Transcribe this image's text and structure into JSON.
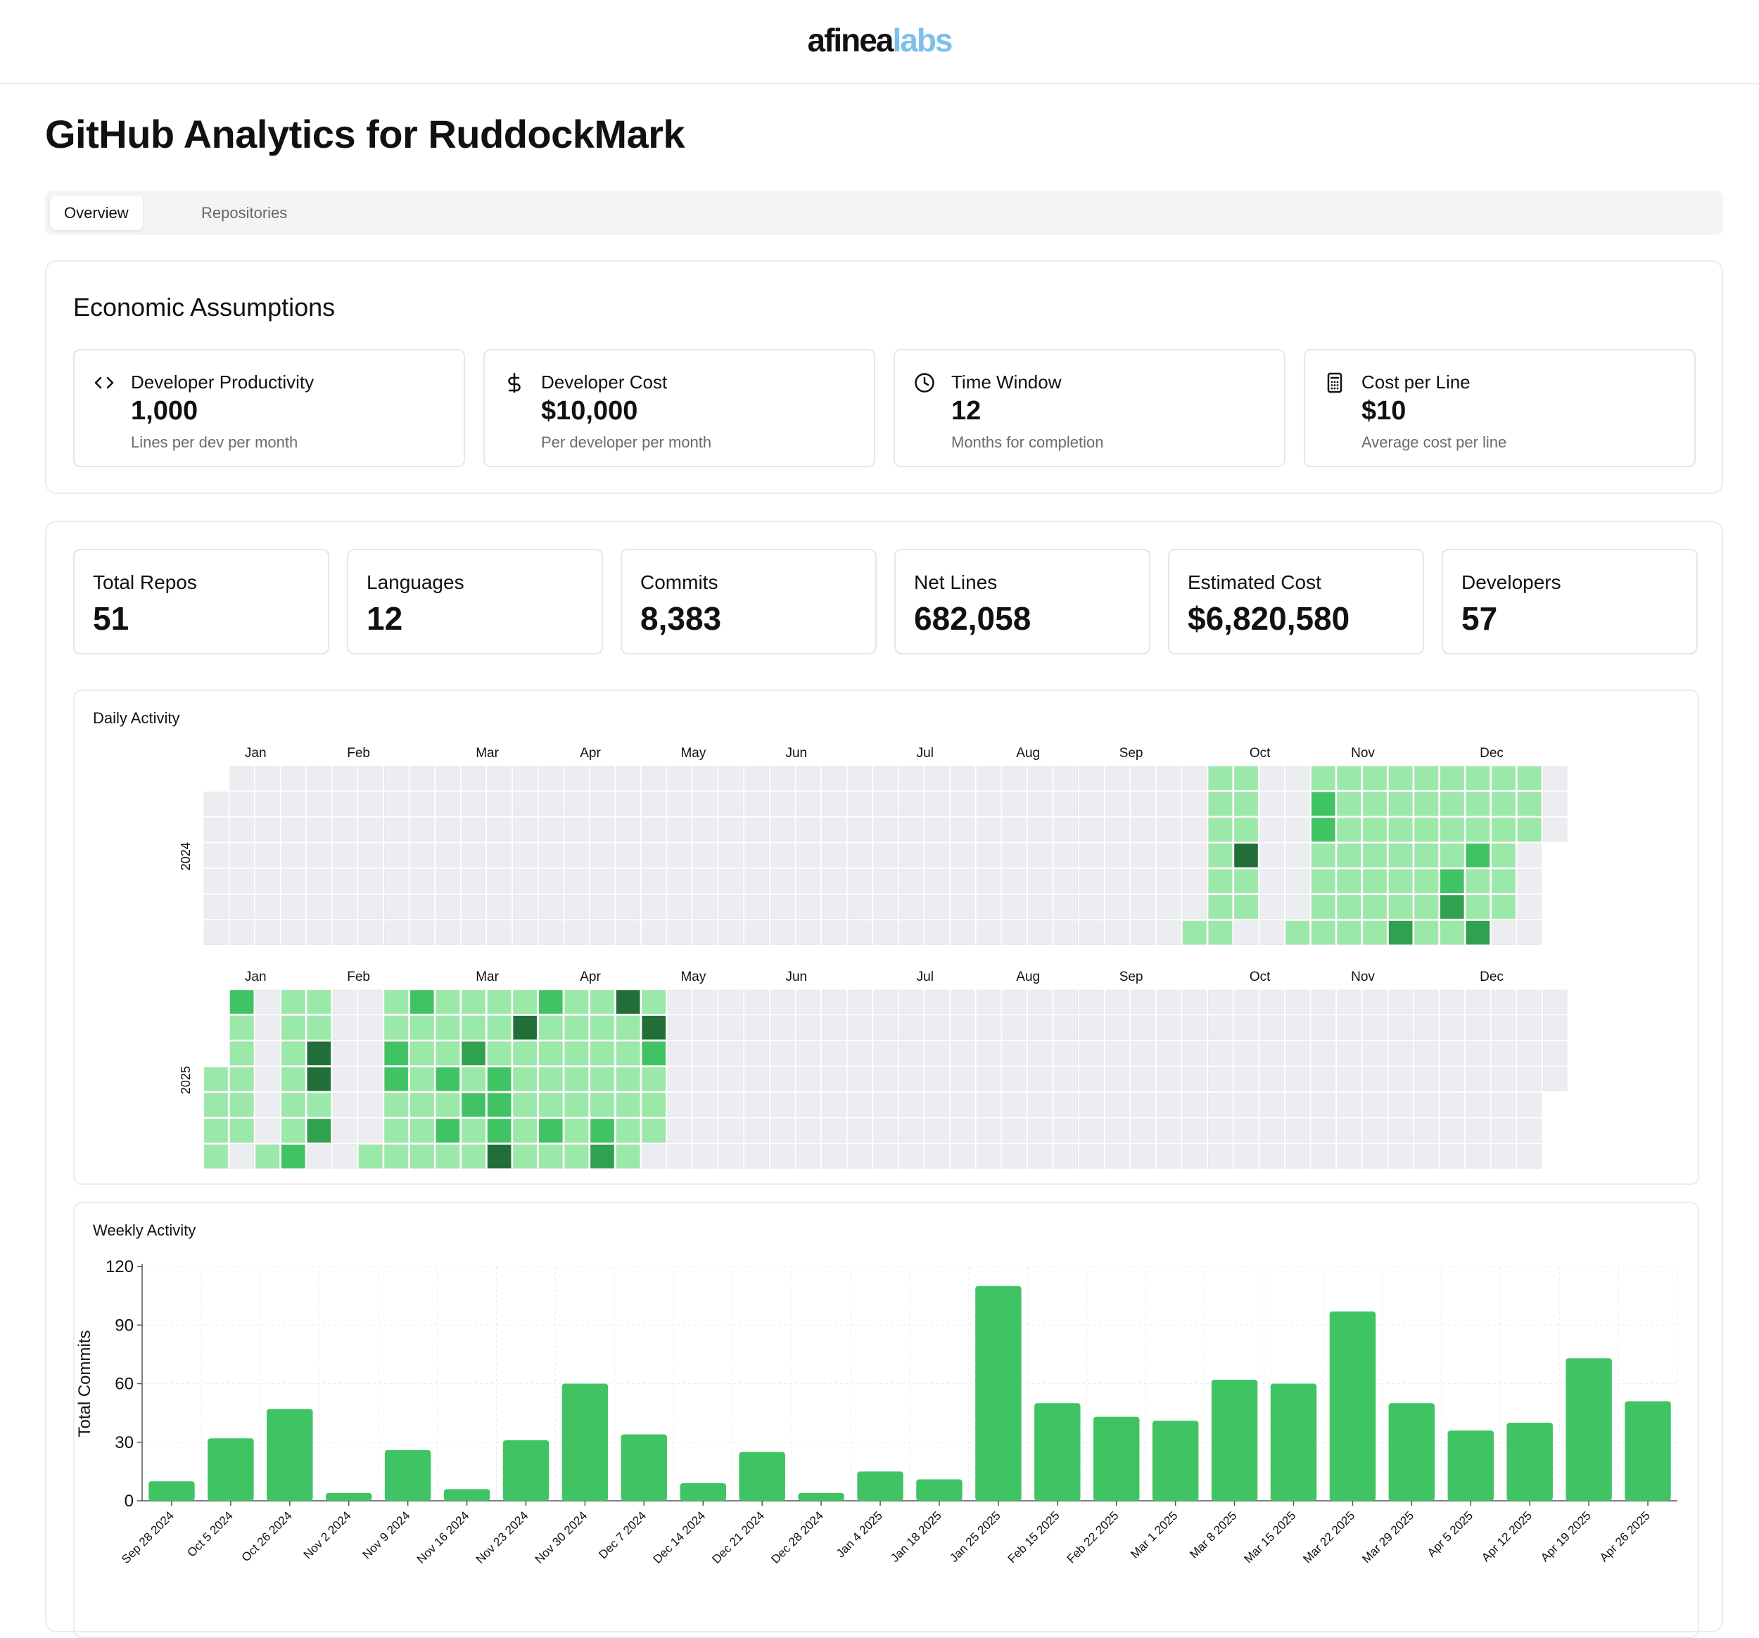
{
  "header": {
    "logo_part1": "afinea",
    "logo_part2": "labs"
  },
  "colors": {
    "logo_accent": "#7cc0ea",
    "green_bar": "#40c463",
    "empty_cell": "#ebedf0",
    "level1": "#9be9a8",
    "level2": "#40c463",
    "level3": "#30a14e",
    "level4": "#216e39"
  },
  "page": {
    "title": "GitHub Analytics for RuddockMark"
  },
  "tabs": [
    {
      "label": "Overview",
      "active": true
    },
    {
      "label": "Repositories",
      "active": false
    }
  ],
  "economic": {
    "title": "Economic Assumptions",
    "cards": [
      {
        "icon": "code-icon",
        "label": "Developer Productivity",
        "value": "1,000",
        "sub": "Lines per dev per month"
      },
      {
        "icon": "dollar-icon",
        "label": "Developer Cost",
        "value": "$10,000",
        "sub": "Per developer per month"
      },
      {
        "icon": "clock-icon",
        "label": "Time Window",
        "value": "12",
        "sub": "Months for completion"
      },
      {
        "icon": "calculator-icon",
        "label": "Cost per Line",
        "value": "$10",
        "sub": "Average cost per line"
      }
    ]
  },
  "stats": [
    {
      "label": "Total Repos",
      "value": "51"
    },
    {
      "label": "Languages",
      "value": "12"
    },
    {
      "label": "Commits",
      "value": "8,383"
    },
    {
      "label": "Net Lines",
      "value": "682,058"
    },
    {
      "label": "Estimated Cost",
      "value": "$6,820,580"
    },
    {
      "label": "Developers",
      "value": "57"
    }
  ],
  "daily": {
    "title": "Daily Activity",
    "years": [
      {
        "year": "2024",
        "months": [
          "Jan",
          "Feb",
          "Mar",
          "Apr",
          "May",
          "Jun",
          "Jul",
          "Aug",
          "Sep",
          "Oct",
          "Nov",
          "Dec"
        ],
        "active_weeks": [
          [],
          [],
          [],
          [],
          [],
          [],
          [],
          [],
          [],
          [],
          [],
          [],
          [],
          [],
          [],
          [],
          [],
          [],
          [],
          [],
          [],
          [],
          [],
          [],
          [],
          [],
          [],
          [],
          [],
          [],
          [],
          [],
          [],
          [],
          [],
          [],
          [],
          [],
          [
            [
              6,
              1
            ]
          ],
          [
            [
              0,
              1
            ],
            [
              1,
              1
            ],
            [
              2,
              1
            ],
            [
              3,
              1
            ],
            [
              4,
              1
            ],
            [
              5,
              1
            ],
            [
              6,
              1
            ]
          ],
          [
            [
              0,
              1
            ],
            [
              1,
              1
            ],
            [
              2,
              1
            ],
            [
              3,
              4
            ],
            [
              4,
              1
            ],
            [
              5,
              1
            ]
          ],
          [],
          [
            [
              6,
              1
            ]
          ],
          [
            [
              0,
              1
            ],
            [
              1,
              2
            ],
            [
              2,
              2
            ],
            [
              3,
              1
            ],
            [
              4,
              1
            ],
            [
              5,
              1
            ],
            [
              6,
              1
            ]
          ],
          [
            [
              0,
              1
            ],
            [
              1,
              1
            ],
            [
              2,
              1
            ],
            [
              3,
              1
            ],
            [
              4,
              1
            ],
            [
              5,
              1
            ],
            [
              6,
              1
            ]
          ],
          [
            [
              0,
              1
            ],
            [
              1,
              1
            ],
            [
              2,
              1
            ],
            [
              3,
              1
            ],
            [
              4,
              1
            ],
            [
              5,
              1
            ],
            [
              6,
              1
            ]
          ],
          [
            [
              0,
              1
            ],
            [
              1,
              1
            ],
            [
              2,
              1
            ],
            [
              3,
              1
            ],
            [
              4,
              1
            ],
            [
              5,
              1
            ],
            [
              6,
              3
            ]
          ],
          [
            [
              0,
              1
            ],
            [
              1,
              1
            ],
            [
              2,
              1
            ],
            [
              3,
              1
            ],
            [
              4,
              1
            ],
            [
              5,
              1
            ],
            [
              6,
              1
            ]
          ],
          [
            [
              0,
              1
            ],
            [
              1,
              1
            ],
            [
              2,
              1
            ],
            [
              3,
              1
            ],
            [
              4,
              2
            ],
            [
              5,
              3
            ],
            [
              6,
              1
            ]
          ],
          [
            [
              0,
              1
            ],
            [
              1,
              1
            ],
            [
              2,
              1
            ],
            [
              3,
              2
            ],
            [
              4,
              1
            ],
            [
              5,
              1
            ],
            [
              6,
              3
            ]
          ],
          [
            [
              0,
              1
            ],
            [
              1,
              1
            ],
            [
              2,
              1
            ],
            [
              3,
              1
            ],
            [
              4,
              1
            ],
            [
              5,
              1
            ]
          ],
          [
            [
              0,
              1
            ],
            [
              1,
              1
            ],
            [
              2,
              1
            ]
          ]
        ]
      },
      {
        "year": "2025",
        "months": [
          "Jan",
          "Feb",
          "Mar",
          "Apr",
          "May",
          "Jun",
          "Jul",
          "Aug",
          "Sep",
          "Oct",
          "Nov",
          "Dec"
        ],
        "active_weeks": [
          [
            [
              3,
              1
            ],
            [
              4,
              1
            ],
            [
              5,
              1
            ],
            [
              6,
              1
            ]
          ],
          [
            [
              0,
              2
            ],
            [
              1,
              1
            ],
            [
              2,
              1
            ],
            [
              3,
              1
            ],
            [
              4,
              1
            ],
            [
              5,
              1
            ]
          ],
          [
            [
              6,
              1
            ]
          ],
          [
            [
              0,
              1
            ],
            [
              1,
              1
            ],
            [
              2,
              1
            ],
            [
              3,
              1
            ],
            [
              4,
              1
            ],
            [
              5,
              1
            ],
            [
              6,
              2
            ]
          ],
          [
            [
              0,
              1
            ],
            [
              1,
              1
            ],
            [
              2,
              4
            ],
            [
              3,
              4
            ],
            [
              4,
              1
            ],
            [
              5,
              3
            ]
          ],
          [],
          [
            [
              6,
              1
            ]
          ],
          [
            [
              0,
              1
            ],
            [
              1,
              1
            ],
            [
              2,
              2
            ],
            [
              3,
              2
            ],
            [
              4,
              1
            ],
            [
              5,
              1
            ],
            [
              6,
              1
            ]
          ],
          [
            [
              0,
              2
            ],
            [
              1,
              1
            ],
            [
              2,
              1
            ],
            [
              3,
              1
            ],
            [
              4,
              1
            ],
            [
              5,
              1
            ],
            [
              6,
              1
            ]
          ],
          [
            [
              0,
              1
            ],
            [
              1,
              1
            ],
            [
              2,
              1
            ],
            [
              3,
              2
            ],
            [
              4,
              1
            ],
            [
              5,
              2
            ],
            [
              6,
              1
            ]
          ],
          [
            [
              0,
              1
            ],
            [
              1,
              1
            ],
            [
              2,
              3
            ],
            [
              3,
              1
            ],
            [
              4,
              2
            ],
            [
              5,
              1
            ],
            [
              6,
              1
            ]
          ],
          [
            [
              0,
              1
            ],
            [
              1,
              1
            ],
            [
              2,
              1
            ],
            [
              3,
              2
            ],
            [
              4,
              2
            ],
            [
              5,
              2
            ],
            [
              6,
              4
            ]
          ],
          [
            [
              0,
              1
            ],
            [
              1,
              4
            ],
            [
              2,
              1
            ],
            [
              3,
              1
            ],
            [
              4,
              1
            ],
            [
              5,
              1
            ],
            [
              6,
              1
            ]
          ],
          [
            [
              0,
              2
            ],
            [
              1,
              1
            ],
            [
              2,
              1
            ],
            [
              3,
              1
            ],
            [
              4,
              1
            ],
            [
              5,
              2
            ],
            [
              6,
              1
            ]
          ],
          [
            [
              0,
              1
            ],
            [
              1,
              1
            ],
            [
              2,
              1
            ],
            [
              3,
              1
            ],
            [
              4,
              1
            ],
            [
              5,
              1
            ],
            [
              6,
              1
            ]
          ],
          [
            [
              0,
              1
            ],
            [
              1,
              1
            ],
            [
              2,
              1
            ],
            [
              3,
              1
            ],
            [
              4,
              1
            ],
            [
              5,
              2
            ],
            [
              6,
              3
            ]
          ],
          [
            [
              0,
              4
            ],
            [
              1,
              1
            ],
            [
              2,
              1
            ],
            [
              3,
              1
            ],
            [
              4,
              1
            ],
            [
              5,
              1
            ],
            [
              6,
              1
            ]
          ],
          [
            [
              0,
              1
            ],
            [
              1,
              4
            ],
            [
              2,
              2
            ],
            [
              3,
              1
            ],
            [
              4,
              1
            ],
            [
              5,
              1
            ]
          ]
        ]
      }
    ]
  },
  "chart_data": {
    "type": "bar",
    "title": "Weekly Activity",
    "xlabel": "",
    "ylabel": "Total Commits",
    "ylim": [
      0,
      120
    ],
    "yticks": [
      0,
      30,
      60,
      90,
      120
    ],
    "grid": true,
    "categories": [
      "Sep 28 2024",
      "Oct 5 2024",
      "Oct 26 2024",
      "Nov 2 2024",
      "Nov 9 2024",
      "Nov 16 2024",
      "Nov 23 2024",
      "Nov 30 2024",
      "Dec 7 2024",
      "Dec 14 2024",
      "Dec 21 2024",
      "Dec 28 2024",
      "Jan 4 2025",
      "Jan 18 2025",
      "Jan 25 2025",
      "Feb 15 2025",
      "Feb 22 2025",
      "Mar 1 2025",
      "Mar 8 2025",
      "Mar 15 2025",
      "Mar 22 2025",
      "Mar 29 2025",
      "Apr 5 2025",
      "Apr 12 2025",
      "Apr 19 2025",
      "Apr 26 2025"
    ],
    "values": [
      10,
      32,
      47,
      4,
      26,
      6,
      31,
      60,
      34,
      9,
      25,
      4,
      15,
      11,
      110,
      50,
      43,
      41,
      62,
      60,
      97,
      50,
      36,
      40,
      73,
      51
    ]
  }
}
